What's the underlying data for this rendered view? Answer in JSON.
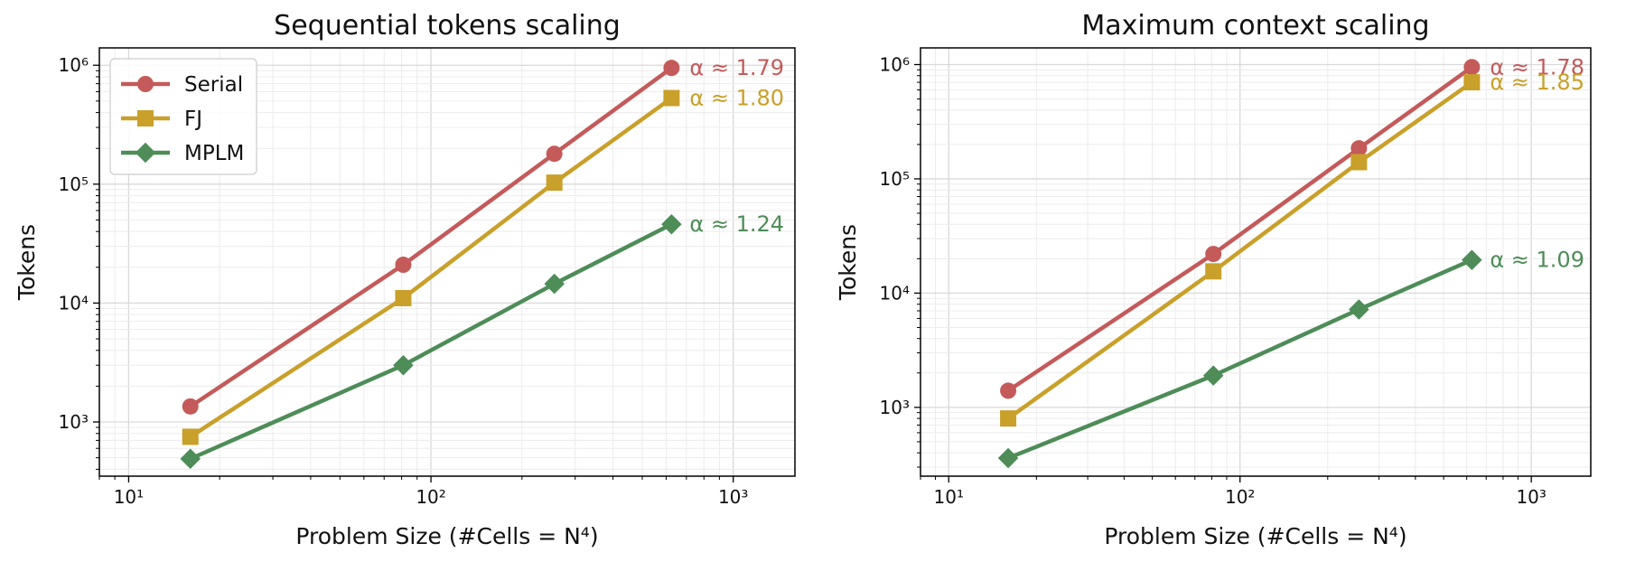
{
  "chart_data": [
    {
      "type": "line",
      "title": "Sequential tokens scaling",
      "xlabel": "Problem Size (#Cells = N⁴)",
      "ylabel": "Tokens",
      "xscale": "log",
      "yscale": "log",
      "xlim": [
        8,
        1600
      ],
      "ylim": [
        350,
        1400000
      ],
      "xticks": [
        {
          "value": 10,
          "label": "10¹"
        },
        {
          "value": 100,
          "label": "10²"
        },
        {
          "value": 1000,
          "label": "10³"
        }
      ],
      "yticks": [
        {
          "value": 1000,
          "label": "10³"
        },
        {
          "value": 10000,
          "label": "10⁴"
        },
        {
          "value": 100000,
          "label": "10⁵"
        },
        {
          "value": 1000000,
          "label": "10⁶"
        }
      ],
      "grid": true,
      "legend": "top-left",
      "x": [
        16,
        81,
        256,
        625
      ],
      "series": [
        {
          "name": "Serial",
          "values": [
            1350,
            21000,
            180000,
            950000
          ],
          "color": "#c45a5a",
          "marker": "circle",
          "annotation": "α ≈ 1.79"
        },
        {
          "name": "FJ",
          "values": [
            750,
            11000,
            103000,
            530000
          ],
          "color": "#c9a02a",
          "marker": "square",
          "annotation": "α ≈ 1.80"
        },
        {
          "name": "MPLM",
          "values": [
            490,
            3000,
            14500,
            46000
          ],
          "color": "#4e8c58",
          "marker": "diamond",
          "annotation": "α ≈ 1.24"
        }
      ]
    },
    {
      "type": "line",
      "title": "Maximum context scaling",
      "xlabel": "Problem Size (#Cells = N⁴)",
      "ylabel": "Tokens",
      "xscale": "log",
      "yscale": "log",
      "xlim": [
        8,
        1600
      ],
      "ylim": [
        250,
        1400000
      ],
      "xticks": [
        {
          "value": 10,
          "label": "10¹"
        },
        {
          "value": 100,
          "label": "10²"
        },
        {
          "value": 1000,
          "label": "10³"
        }
      ],
      "yticks": [
        {
          "value": 1000,
          "label": "10³"
        },
        {
          "value": 10000,
          "label": "10⁴"
        },
        {
          "value": 100000,
          "label": "10⁵"
        },
        {
          "value": 1000000,
          "label": "10⁶"
        }
      ],
      "grid": true,
      "legend": "none",
      "x": [
        16,
        81,
        256,
        625
      ],
      "series": [
        {
          "name": "Serial",
          "values": [
            1400,
            22000,
            185000,
            950000
          ],
          "color": "#c45a5a",
          "marker": "circle",
          "annotation": "α ≈ 1.78"
        },
        {
          "name": "FJ",
          "values": [
            800,
            15500,
            140000,
            700000
          ],
          "color": "#c9a02a",
          "marker": "square",
          "annotation": "α ≈ 1.85"
        },
        {
          "name": "MPLM",
          "values": [
            360,
            1900,
            7200,
            19500
          ],
          "color": "#4e8c58",
          "marker": "diamond",
          "annotation": "α ≈ 1.09"
        }
      ]
    }
  ]
}
